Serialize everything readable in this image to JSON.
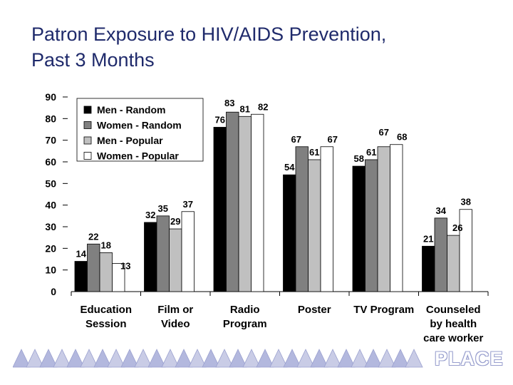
{
  "page": {
    "title_line1": "Patron Exposure to HIV/AIDS Prevention,",
    "title_line2": "Past 3 Months",
    "logo_text": "PLACE"
  },
  "colors": {
    "title": "#1f2a6b",
    "series": [
      "#000000",
      "#808080",
      "#c0c0c0",
      "#ffffff"
    ],
    "footer": "#9aa0cf"
  },
  "chart_data": {
    "type": "bar",
    "title": "",
    "xlabel": "",
    "ylabel": "",
    "ylim": [
      0,
      90
    ],
    "yticks": [
      "0",
      "10",
      "20",
      "30",
      "40",
      "50",
      "60",
      "70",
      "80",
      "90"
    ],
    "grid": false,
    "legend_position": "top-left",
    "categories": [
      [
        "Education",
        "Session"
      ],
      [
        "Film or",
        "Video"
      ],
      [
        "Radio",
        "Program"
      ],
      [
        "Poster"
      ],
      [
        "TV Program"
      ],
      [
        "Counseled",
        "by health",
        "care worker"
      ]
    ],
    "series": [
      {
        "name": "Men - Random",
        "values": [
          14,
          32,
          76,
          54,
          58,
          21
        ]
      },
      {
        "name": "Women - Random",
        "values": [
          22,
          35,
          83,
          67,
          61,
          34
        ]
      },
      {
        "name": "Men - Popular",
        "values": [
          18,
          29,
          81,
          61,
          67,
          26
        ]
      },
      {
        "name": "Women - Popular",
        "values": [
          13,
          37,
          82,
          67,
          68,
          38
        ]
      }
    ]
  }
}
